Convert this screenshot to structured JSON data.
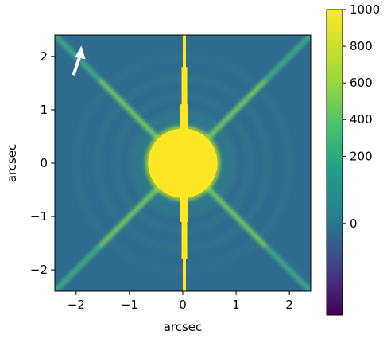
{
  "chart_data": {
    "type": "heatmap",
    "title": "",
    "xlabel": "arcsec",
    "ylabel": "arcsec",
    "xlim": [
      -2.4,
      2.4
    ],
    "ylim": [
      -2.4,
      2.4
    ],
    "xticks": [
      -2,
      -1,
      0,
      1,
      2
    ],
    "yticks": [
      -2,
      -1,
      0,
      1,
      2
    ],
    "xtick_labels": [
      "−2",
      "−1",
      "0",
      "1",
      "2"
    ],
    "ytick_labels": [
      "−2",
      "−1",
      "0",
      "1",
      "2"
    ],
    "colorbar": {
      "colormap": "viridis",
      "scale": "nonlinear",
      "range": [
        -300,
        1000
      ],
      "ticks": [
        0,
        200,
        400,
        600,
        800,
        1000
      ],
      "tick_labels": [
        "0",
        "200",
        "400",
        "600",
        "800",
        "1000"
      ]
    },
    "features": {
      "saturated_core_radius_arcsec": 0.65,
      "diffraction_spike_angles_deg": [
        45,
        135
      ],
      "vertical_streak_x_arcsec": 0.03,
      "north_arrow": true
    },
    "colors": {
      "background": "#2f6b8e",
      "saturated": "#fde725",
      "arrow": "#ffffff"
    }
  }
}
